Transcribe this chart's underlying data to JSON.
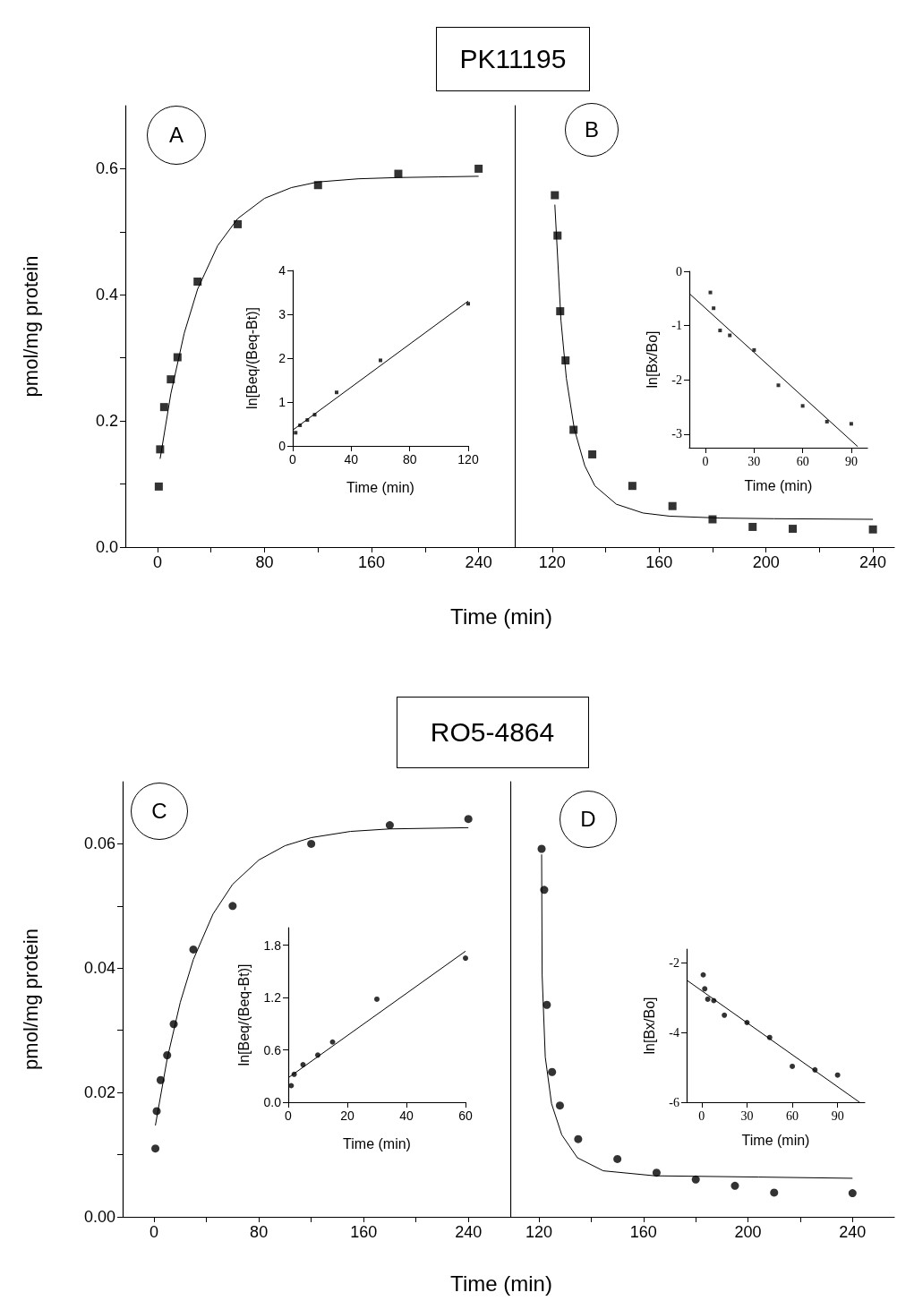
{
  "chart_data": [
    {
      "type": "scatter",
      "title": "PK11195",
      "xlabel": "Time (min)",
      "ylabel": "pmol/mg protein",
      "annotations": [
        "A"
      ],
      "marker": "square",
      "xlim": [
        -24,
        267
      ],
      "ylim": [
        0,
        0.7
      ],
      "xticks": [
        0,
        {
          "value": 40,
          "label": null
        },
        80,
        {
          "value": 120,
          "label": null
        },
        160,
        {
          "value": 200,
          "label": null
        },
        240
      ],
      "yticks": [
        {
          "value": 0,
          "label": "0.0"
        },
        {
          "value": 0.1,
          "label": null
        },
        {
          "value": 0.2,
          "label": "0.2"
        },
        {
          "value": 0.3,
          "label": null
        },
        {
          "value": 0.4,
          "label": "0.4"
        },
        {
          "value": 0.5,
          "label": null
        },
        {
          "value": 0.6,
          "label": "0.6"
        }
      ],
      "series": [
        {
          "type": "scatter",
          "color": "#000000",
          "x": [
            1,
            2,
            5,
            10,
            15,
            30,
            60,
            120,
            180,
            240
          ],
          "values": [
            0.096,
            0.155,
            0.222,
            0.266,
            0.301,
            0.421,
            0.512,
            0.574,
            0.592,
            0.6
          ]
        },
        {
          "type": "line",
          "marker": "none",
          "color": "#000000",
          "x": [
            2,
            10,
            20,
            30,
            45,
            60,
            80,
            100,
            120,
            150,
            180,
            210,
            240
          ],
          "values": [
            0.14,
            0.243,
            0.339,
            0.409,
            0.478,
            0.521,
            0.553,
            0.57,
            0.579,
            0.584,
            0.586,
            0.587,
            0.588
          ]
        }
      ]
    },
    {
      "type": "scatter",
      "xlabel": "Time (min)",
      "ylabel": "ln[Beq/(Beq-Bt)]",
      "marker": "square",
      "xlim": [
        0,
        120
      ],
      "ylim": [
        0,
        4
      ],
      "xticks": [
        0,
        40,
        80,
        120
      ],
      "yticks": [
        0,
        1,
        2,
        3,
        4
      ],
      "series": [
        {
          "type": "scatter",
          "color": "#000000",
          "x": [
            2,
            5,
            10,
            15,
            30,
            60,
            120
          ],
          "values": [
            0.3,
            0.47,
            0.59,
            0.71,
            1.22,
            1.95,
            3.24
          ]
        },
        {
          "type": "line",
          "marker": "none",
          "color": "#000000",
          "x": [
            0,
            120
          ],
          "values": [
            0.36,
            3.3
          ]
        }
      ]
    },
    {
      "type": "scatter",
      "annotations": [
        "B"
      ],
      "marker": "square",
      "tick_labels": "x",
      "xlim": [
        106,
        248
      ],
      "ylim": [
        0,
        0.7
      ],
      "xticks": [
        120,
        {
          "value": 140,
          "label": null
        },
        160,
        {
          "value": 180,
          "label": null
        },
        200,
        {
          "value": 220,
          "label": null
        },
        240
      ],
      "yticks": [
        {
          "value": 0,
          "label": null
        },
        {
          "value": 0.1,
          "label": null
        },
        {
          "value": 0.2,
          "label": null
        },
        {
          "value": 0.3,
          "label": null
        },
        {
          "value": 0.4,
          "label": null
        },
        {
          "value": 0.5,
          "label": null
        },
        {
          "value": 0.6,
          "label": null
        }
      ],
      "series": [
        {
          "type": "scatter",
          "color": "#000000",
          "x": [
            121,
            122,
            123,
            125,
            128,
            135,
            150,
            165,
            180,
            195,
            210,
            240
          ],
          "values": [
            0.558,
            0.494,
            0.374,
            0.296,
            0.186,
            0.147,
            0.097,
            0.065,
            0.044,
            0.032,
            0.029,
            0.028
          ]
        },
        {
          "type": "line",
          "marker": "none",
          "color": "#000000",
          "x": [
            121,
            123.3,
            125.3,
            128.3,
            132.2,
            136,
            144,
            154,
            164,
            183,
            203,
            240
          ],
          "values": [
            0.543,
            0.359,
            0.268,
            0.187,
            0.129,
            0.097,
            0.068,
            0.054,
            0.049,
            0.046,
            0.045,
            0.044
          ]
        }
      ]
    },
    {
      "type": "scatter",
      "xlabel": "Time (min)",
      "ylabel": "ln[Bx/Bo]",
      "marker": "square",
      "xlim": [
        -10,
        100
      ],
      "ylim": [
        -3.25,
        0
      ],
      "xticks": [
        0,
        30,
        60,
        90
      ],
      "yticks": [
        -3,
        -2,
        -1,
        0
      ],
      "series": [
        {
          "type": "scatter",
          "color": "#000000",
          "x": [
            3,
            5,
            9,
            15,
            30,
            45,
            60,
            75,
            90
          ],
          "values": [
            -0.39,
            -0.68,
            -1.09,
            -1.18,
            -1.45,
            -2.1,
            -2.48,
            -2.77,
            -2.81
          ]
        },
        {
          "type": "line",
          "marker": "none",
          "color": "#000000",
          "x": [
            -10,
            94
          ],
          "values": [
            -0.41,
            -3.23
          ]
        }
      ]
    },
    {
      "type": "scatter",
      "title": "RO5-4864",
      "xlabel": "Time (min)",
      "ylabel": "pmol/mg protein",
      "annotations": [
        "C"
      ],
      "marker": "circle",
      "xlim": [
        -24,
        272
      ],
      "ylim": [
        0,
        0.07
      ],
      "xticks": [
        0,
        {
          "value": 40,
          "label": null
        },
        80,
        {
          "value": 120,
          "label": null
        },
        160,
        {
          "value": 200,
          "label": null
        },
        240
      ],
      "yticks": [
        {
          "value": 0,
          "label": "0.00"
        },
        {
          "value": 0.01,
          "label": null
        },
        {
          "value": 0.02,
          "label": "0.02"
        },
        {
          "value": 0.03,
          "label": null
        },
        {
          "value": 0.04,
          "label": "0.04"
        },
        {
          "value": 0.05,
          "label": null
        },
        {
          "value": 0.06,
          "label": "0.06"
        }
      ],
      "series": [
        {
          "type": "scatter",
          "color": "#000000",
          "x": [
            1,
            2,
            5,
            10,
            15,
            30,
            60,
            120,
            180,
            240
          ],
          "values": [
            0.011,
            0.017,
            0.022,
            0.026,
            0.031,
            0.043,
            0.05,
            0.06,
            0.063,
            0.064
          ]
        },
        {
          "type": "line",
          "marker": "none",
          "color": "#000000",
          "x": [
            1,
            10,
            20,
            30,
            45,
            60,
            80,
            100,
            120,
            150,
            180,
            240
          ],
          "values": [
            0.0147,
            0.0254,
            0.0345,
            0.0414,
            0.0487,
            0.0535,
            0.0574,
            0.0597,
            0.061,
            0.062,
            0.0624,
            0.0626
          ]
        }
      ]
    },
    {
      "type": "scatter",
      "xlabel": "Time (min)",
      "ylabel": "ln[Beq/(Beq-Bt)]",
      "marker": "circle",
      "xlim": [
        0,
        60
      ],
      "ylim": [
        0,
        2
      ],
      "xticks": [
        0,
        20,
        40,
        60
      ],
      "yticks": [
        {
          "value": 0,
          "label": "0.0"
        },
        {
          "value": 0.6,
          "label": "0.6"
        },
        {
          "value": 1.2,
          "label": "1.2"
        },
        {
          "value": 1.8,
          "label": "1.8"
        }
      ],
      "series": [
        {
          "type": "scatter",
          "color": "#000000",
          "x": [
            1,
            2,
            5,
            10,
            15,
            30,
            60
          ],
          "values": [
            0.19,
            0.32,
            0.43,
            0.54,
            0.69,
            1.18,
            1.65
          ]
        },
        {
          "type": "line",
          "marker": "none",
          "color": "#000000",
          "x": [
            0,
            60
          ],
          "values": [
            0.28,
            1.73
          ]
        }
      ]
    },
    {
      "type": "scatter",
      "annotations": [
        "D"
      ],
      "marker": "circle",
      "tick_labels": "x",
      "xlim": [
        109,
        256
      ],
      "ylim": [
        0,
        0.07
      ],
      "xticks": [
        120,
        {
          "value": 140,
          "label": null
        },
        160,
        {
          "value": 180,
          "label": null
        },
        200,
        {
          "value": 220,
          "label": null
        },
        240
      ],
      "yticks": [
        {
          "value": 0,
          "label": null
        },
        {
          "value": 0.01,
          "label": null
        },
        {
          "value": 0.02,
          "label": null
        },
        {
          "value": 0.03,
          "label": null
        },
        {
          "value": 0.04,
          "label": null
        },
        {
          "value": 0.05,
          "label": null
        },
        {
          "value": 0.06,
          "label": null
        }
      ],
      "series": [
        {
          "type": "scatter",
          "color": "#000000",
          "x": [
            121,
            122,
            123,
            125,
            128,
            135,
            150,
            165,
            180,
            195,
            210,
            240
          ],
          "values": [
            0.0592,
            0.0526,
            0.0341,
            0.0233,
            0.0179,
            0.0125,
            0.0093,
            0.0071,
            0.006,
            0.005,
            0.0039,
            0.0038
          ]
        },
        {
          "type": "line",
          "marker": "none",
          "color": "#000000",
          "x": [
            121,
            121.2,
            122.4,
            124.8,
            128.7,
            134.7,
            144.6,
            164.4,
            204,
            240
          ],
          "values": [
            0.0583,
            0.0389,
            0.0257,
            0.0182,
            0.0132,
            0.0095,
            0.0074,
            0.0066,
            0.0064,
            0.0062
          ]
        }
      ]
    },
    {
      "type": "scatter",
      "xlabel": "Time (min)",
      "ylabel": "ln[Bx/Bo]",
      "marker": "circle",
      "xlim": [
        -10,
        108
      ],
      "ylim": [
        -6,
        -1.6
      ],
      "xticks": [
        0,
        30,
        60,
        90
      ],
      "yticks": [
        -6,
        -4,
        -2
      ],
      "series": [
        {
          "type": "scatter",
          "color": "#000000",
          "x": [
            1,
            2,
            4,
            8,
            15,
            30,
            45,
            60,
            75,
            90
          ],
          "values": [
            -2.34,
            -2.74,
            -3.04,
            -3.08,
            -3.5,
            -3.71,
            -4.14,
            -4.97,
            -5.07,
            -5.22
          ]
        },
        {
          "type": "line",
          "marker": "none",
          "color": "#000000",
          "x": [
            -10,
            104.5
          ],
          "values": [
            -2.49,
            -6.0
          ]
        }
      ]
    }
  ]
}
